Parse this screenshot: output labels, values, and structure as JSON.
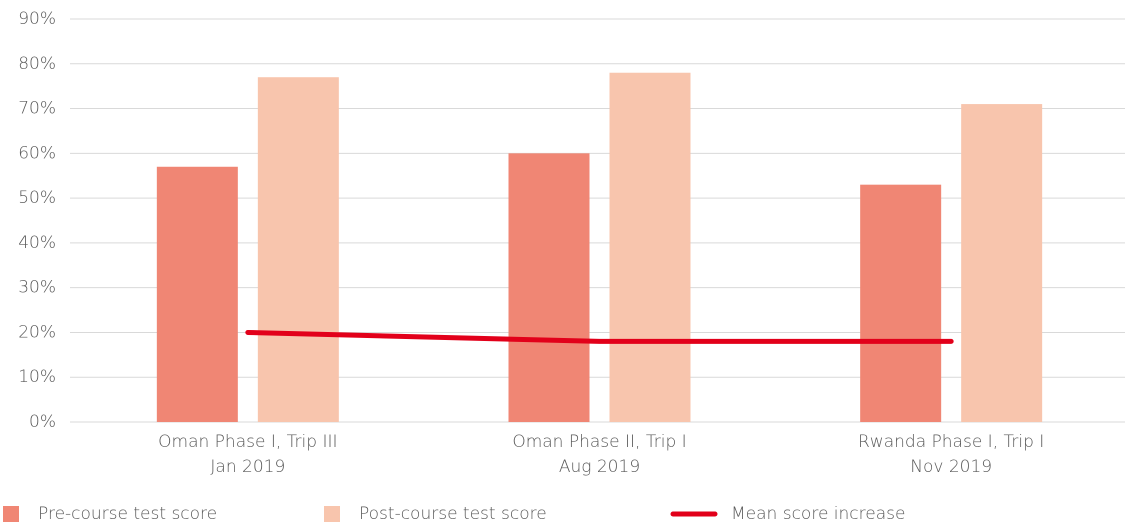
{
  "chart_data": {
    "type": "bar",
    "categories": [
      [
        "Oman Phase I, Trip III",
        "Jan 2019"
      ],
      [
        "Oman Phase II, Trip I",
        "Aug 2019"
      ],
      [
        "Rwanda Phase I, Trip I",
        "Nov 2019"
      ]
    ],
    "series": [
      {
        "name": "Pre-course test score",
        "color": "#f08674",
        "values": [
          57,
          60,
          53
        ]
      },
      {
        "name": "Post-course test score",
        "color": "#f8c5ad",
        "values": [
          77,
          78,
          71
        ]
      },
      {
        "name": "Mean score increase",
        "color": "#e2001a",
        "type": "line",
        "values": [
          20,
          18,
          18
        ]
      }
    ],
    "ylim": [
      0,
      90
    ],
    "yticks": [
      {
        "value": 0,
        "label": "0%"
      },
      {
        "value": 10,
        "label": "10%"
      },
      {
        "value": 20,
        "label": "20%"
      },
      {
        "value": 30,
        "label": "30%"
      },
      {
        "value": 40,
        "label": "40%"
      },
      {
        "value": 50,
        "label": "50%"
      },
      {
        "value": 60,
        "label": "60%"
      },
      {
        "value": 70,
        "label": "70%"
      },
      {
        "value": 80,
        "label": "80%"
      },
      {
        "value": 90,
        "label": "90%"
      }
    ],
    "grid": true,
    "legend": "bottom"
  }
}
